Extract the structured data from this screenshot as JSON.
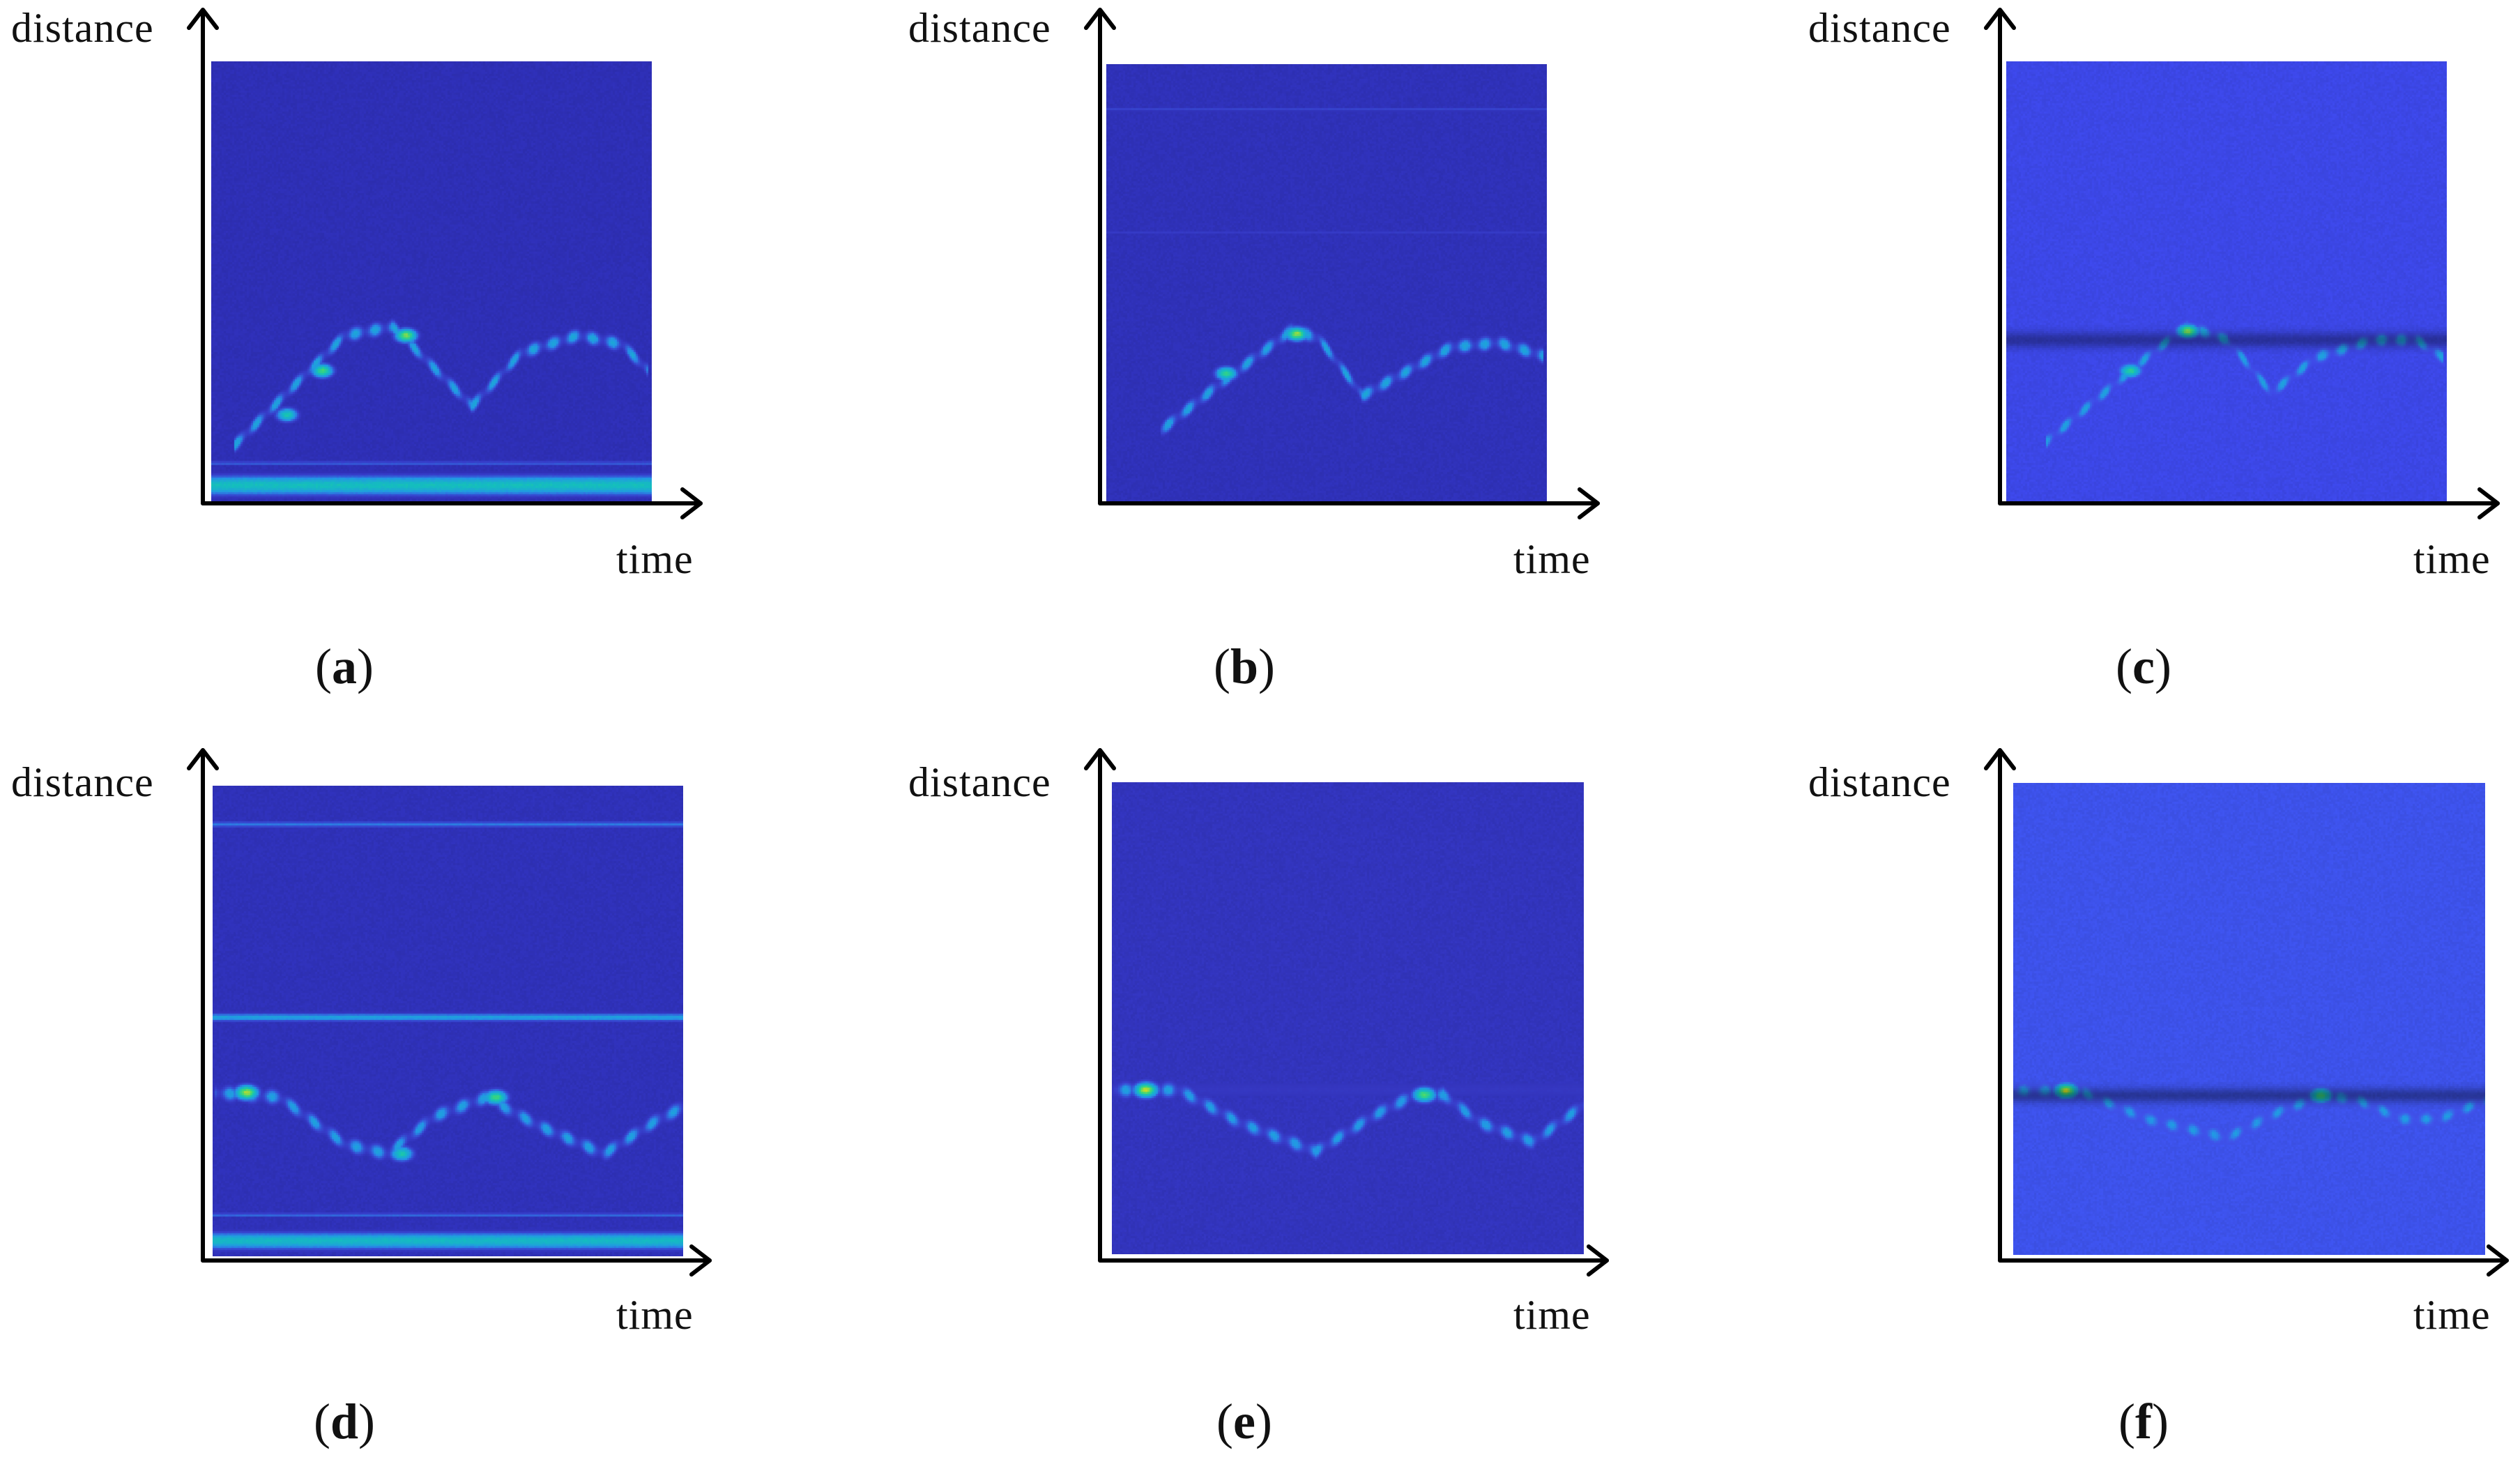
{
  "chart_data": [
    {
      "type": "heatmap",
      "panel_label": "a",
      "xlabel": "time",
      "ylabel": "distance",
      "background_color": "#2e2fb5",
      "colormap": "parula",
      "features": {
        "bands": [
          {
            "y": 0.04,
            "thickness": 0.05,
            "level": 0.55
          },
          {
            "y": 0.09,
            "thickness": 0.012,
            "level": 0.25
          }
        ],
        "traces": [
          {
            "points": [
              [
                0.05,
                0.13
              ],
              [
                0.18,
                0.26
              ],
              [
                0.3,
                0.38
              ],
              [
                0.41,
                0.4
              ],
              [
                0.59,
                0.22
              ],
              [
                0.7,
                0.34
              ],
              [
                0.83,
                0.38
              ],
              [
                0.93,
                0.36
              ],
              [
                0.99,
                0.3
              ]
            ],
            "peak_level": 0.78
          }
        ],
        "hotspots": [
          {
            "x": 0.44,
            "y": 0.38,
            "level": 0.8
          },
          {
            "x": 0.25,
            "y": 0.3,
            "level": 0.72
          },
          {
            "x": 0.17,
            "y": 0.2,
            "level": 0.6
          }
        ]
      }
    },
    {
      "type": "heatmap",
      "panel_label": "b",
      "xlabel": "time",
      "ylabel": "distance",
      "background_color": "#2f31b8",
      "colormap": "parula",
      "features": {
        "bands": [
          {
            "y": 0.9,
            "thickness": 0.012,
            "level": 0.18
          },
          {
            "y": 0.62,
            "thickness": 0.01,
            "level": 0.15
          }
        ],
        "traces": [
          {
            "points": [
              [
                0.12,
                0.17
              ],
              [
                0.26,
                0.28
              ],
              [
                0.38,
                0.37
              ],
              [
                0.42,
                0.4
              ],
              [
                0.48,
                0.38
              ],
              [
                0.58,
                0.25
              ],
              [
                0.67,
                0.3
              ],
              [
                0.78,
                0.36
              ],
              [
                0.89,
                0.37
              ],
              [
                0.99,
                0.34
              ]
            ],
            "peak_level": 0.78
          }
        ],
        "hotspots": [
          {
            "x": 0.43,
            "y": 0.39,
            "level": 0.82
          },
          {
            "x": 0.27,
            "y": 0.3,
            "level": 0.68
          }
        ]
      }
    },
    {
      "type": "heatmap",
      "panel_label": "c",
      "xlabel": "time",
      "ylabel": "distance",
      "background_color": "#3c47e6",
      "colormap": "parula",
      "features": {
        "bands": [
          {
            "y": 0.37,
            "thickness": 0.04,
            "level": -0.6
          }
        ],
        "traces": [
          {
            "points": [
              [
                0.09,
                0.14
              ],
              [
                0.22,
                0.25
              ],
              [
                0.34,
                0.35
              ],
              [
                0.41,
                0.4
              ],
              [
                0.5,
                0.37
              ],
              [
                0.6,
                0.25
              ],
              [
                0.7,
                0.33
              ],
              [
                0.83,
                0.37
              ],
              [
                0.93,
                0.37
              ],
              [
                0.99,
                0.33
              ]
            ],
            "peak_level": 0.75
          }
        ],
        "hotspots": [
          {
            "x": 0.41,
            "y": 0.39,
            "level": 0.82
          },
          {
            "x": 0.28,
            "y": 0.3,
            "level": 0.66
          }
        ]
      }
    },
    {
      "type": "heatmap",
      "panel_label": "d",
      "xlabel": "time",
      "ylabel": "distance",
      "background_color": "#2f31b8",
      "colormap": "parula",
      "features": {
        "bands": [
          {
            "y": 0.035,
            "thickness": 0.04,
            "level": 0.52
          },
          {
            "y": 0.09,
            "thickness": 0.01,
            "level": 0.28
          },
          {
            "y": 0.51,
            "thickness": 0.02,
            "level": 0.4
          },
          {
            "y": 0.92,
            "thickness": 0.015,
            "level": 0.3
          }
        ],
        "traces": [
          {
            "points": [
              [
                0.0,
                0.35
              ],
              [
                0.14,
                0.34
              ],
              [
                0.28,
                0.24
              ],
              [
                0.37,
                0.22
              ],
              [
                0.47,
                0.3
              ],
              [
                0.58,
                0.34
              ],
              [
                0.69,
                0.28
              ],
              [
                0.83,
                0.22
              ],
              [
                0.94,
                0.29
              ],
              [
                1.0,
                0.32
              ]
            ],
            "peak_level": 0.74
          }
        ],
        "hotspots": [
          {
            "x": 0.07,
            "y": 0.35,
            "level": 0.85
          },
          {
            "x": 0.6,
            "y": 0.34,
            "level": 0.72
          },
          {
            "x": 0.4,
            "y": 0.22,
            "level": 0.6
          }
        ]
      }
    },
    {
      "type": "heatmap",
      "panel_label": "e",
      "xlabel": "time",
      "ylabel": "distance",
      "background_color": "#3234bc",
      "colormap": "parula",
      "features": {
        "bands": [
          {
            "y": 0.35,
            "thickness": 0.05,
            "level": 0.12
          }
        ],
        "traces": [
          {
            "points": [
              [
                0.0,
                0.35
              ],
              [
                0.14,
                0.35
              ],
              [
                0.27,
                0.28
              ],
              [
                0.43,
                0.22
              ],
              [
                0.56,
                0.3
              ],
              [
                0.64,
                0.34
              ],
              [
                0.7,
                0.34
              ],
              [
                0.78,
                0.28
              ],
              [
                0.89,
                0.24
              ],
              [
                1.0,
                0.32
              ]
            ],
            "peak_level": 0.72
          }
        ],
        "hotspots": [
          {
            "x": 0.07,
            "y": 0.35,
            "level": 0.88
          },
          {
            "x": 0.66,
            "y": 0.34,
            "level": 0.74
          }
        ]
      }
    },
    {
      "type": "heatmap",
      "panel_label": "f",
      "xlabel": "time",
      "ylabel": "distance",
      "background_color": "#3d52ea",
      "colormap": "parula",
      "features": {
        "bands": [
          {
            "y": 0.34,
            "thickness": 0.035,
            "level": -0.65
          }
        ],
        "traces": [
          {
            "points": [
              [
                0.0,
                0.35
              ],
              [
                0.14,
                0.35
              ],
              [
                0.28,
                0.29
              ],
              [
                0.45,
                0.25
              ],
              [
                0.57,
                0.31
              ],
              [
                0.66,
                0.34
              ],
              [
                0.73,
                0.33
              ],
              [
                0.82,
                0.29
              ],
              [
                0.9,
                0.29
              ],
              [
                1.0,
                0.33
              ]
            ],
            "peak_level": 0.68
          }
        ],
        "hotspots": [
          {
            "x": 0.11,
            "y": 0.35,
            "level": 0.88
          },
          {
            "x": 0.65,
            "y": 0.34,
            "level": 0.72
          }
        ]
      }
    }
  ]
}
